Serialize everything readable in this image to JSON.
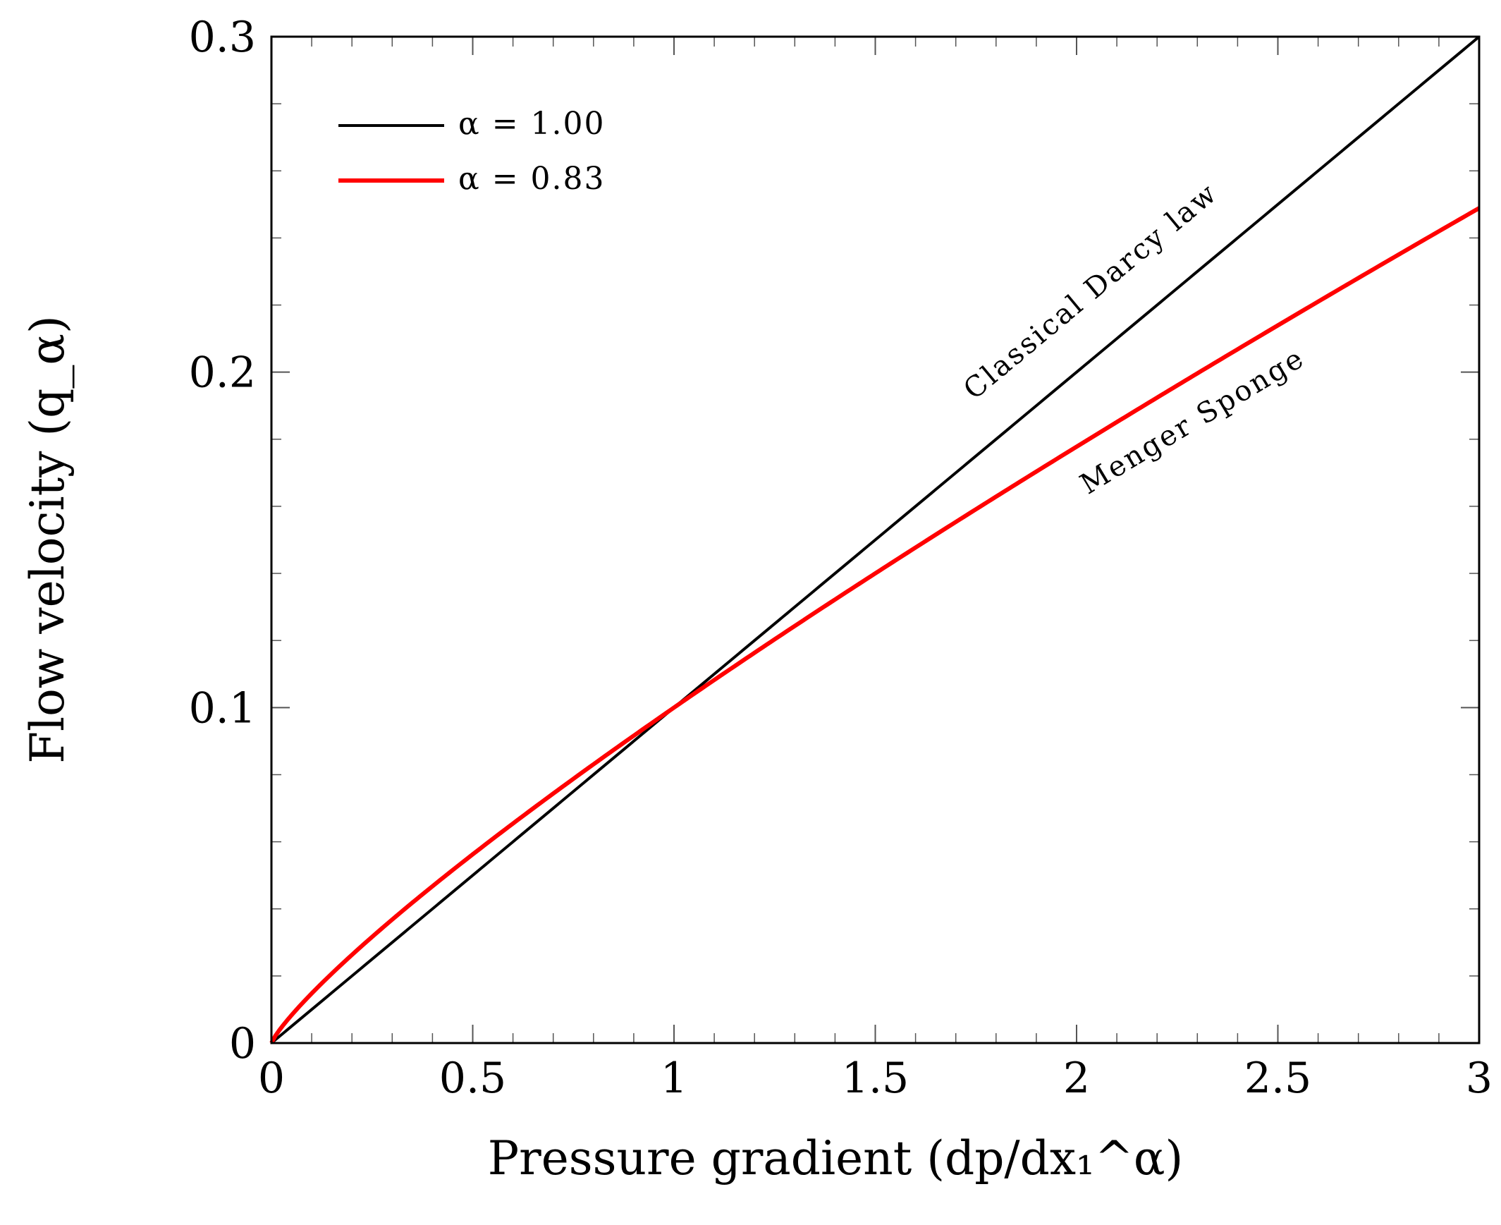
{
  "chart_data": {
    "type": "line",
    "xlabel": "Pressure gradient (dp/dx₁^α)",
    "ylabel": "Flow velocity (q_α)",
    "xlim": [
      0,
      3
    ],
    "ylim": [
      0,
      0.3
    ],
    "x_ticks": [
      {
        "value": 0,
        "label": "0"
      },
      {
        "value": 0.5,
        "label": "0.5"
      },
      {
        "value": 1,
        "label": "1"
      },
      {
        "value": 1.5,
        "label": "1.5"
      },
      {
        "value": 2,
        "label": "2"
      },
      {
        "value": 2.5,
        "label": "2.5"
      },
      {
        "value": 3,
        "label": "3"
      }
    ],
    "y_ticks": [
      {
        "value": 0,
        "label": "0"
      },
      {
        "value": 0.1,
        "label": "0.1"
      },
      {
        "value": 0.2,
        "label": "0.2"
      },
      {
        "value": 0.3,
        "label": "0.3"
      }
    ],
    "x_minor_step": 0.1,
    "y_minor_step": 0.02,
    "grid": false,
    "legend_position": "top-left",
    "series": [
      {
        "name": "α = 1.00",
        "color": "#000000",
        "alpha": 1.0,
        "x": [
          0,
          0.25,
          0.5,
          0.75,
          1,
          1.25,
          1.5,
          1.75,
          2,
          2.25,
          2.5,
          2.75,
          3
        ],
        "y": [
          0,
          0.025,
          0.05,
          0.075,
          0.1,
          0.125,
          0.15,
          0.175,
          0.2,
          0.225,
          0.25,
          0.275,
          0.3
        ]
      },
      {
        "name": "α = 0.83",
        "color": "#ff0000",
        "alpha": 0.83,
        "x": [
          0,
          0.01,
          0.05,
          0.1,
          0.2,
          0.3,
          0.5,
          0.75,
          1,
          1.25,
          1.5,
          1.75,
          2,
          2.25,
          2.5,
          2.75,
          3
        ],
        "y": [
          0,
          0.0022,
          0.0083,
          0.0148,
          0.0263,
          0.0368,
          0.0563,
          0.0788,
          0.1,
          0.1204,
          0.14,
          0.1591,
          0.1778,
          0.196,
          0.2139,
          0.2315,
          0.2488
        ]
      }
    ],
    "annotations": [
      {
        "text": "Classical Darcy law",
        "series": 0,
        "x": 2.05,
        "y": 0.222
      },
      {
        "text": "Menger Sponge",
        "series": 1,
        "x": 2.3,
        "y": 0.183
      }
    ]
  }
}
